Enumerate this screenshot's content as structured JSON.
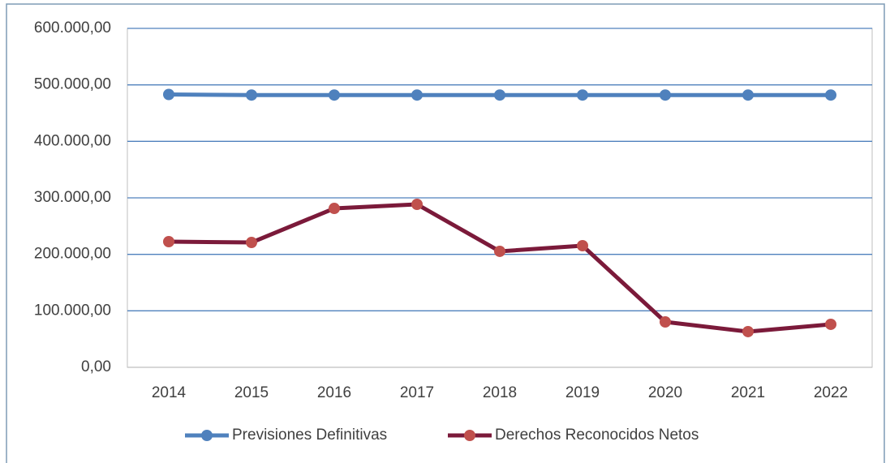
{
  "chart_data": {
    "type": "line",
    "categories": [
      "2014",
      "2015",
      "2016",
      "2017",
      "2018",
      "2019",
      "2020",
      "2021",
      "2022"
    ],
    "series": [
      {
        "name": "Previsiones Definitivas",
        "color": "#4f81bd",
        "marker_color": "#4f81bd",
        "values": [
          483000,
          482000,
          482000,
          482000,
          482000,
          482000,
          482000,
          482000,
          482000
        ]
      },
      {
        "name": "Derechos Reconocidos Netos",
        "color": "#7b1a3a",
        "marker_color": "#c0504d",
        "values": [
          222500,
          221000,
          281300,
          288500,
          205300,
          215300,
          80400,
          63200,
          76100
        ]
      }
    ],
    "ylim": [
      0,
      600000
    ],
    "yticks": [
      {
        "value": 0,
        "label": "0,00"
      },
      {
        "value": 100000,
        "label": "100.000,00"
      },
      {
        "value": 200000,
        "label": "200.000,00"
      },
      {
        "value": 300000,
        "label": "300.000,00"
      },
      {
        "value": 400000,
        "label": "400.000,00"
      },
      {
        "value": 500000,
        "label": "500.000,00"
      },
      {
        "value": 600000,
        "label": "600.000,00"
      }
    ],
    "grid": true,
    "legend": "bottom"
  }
}
